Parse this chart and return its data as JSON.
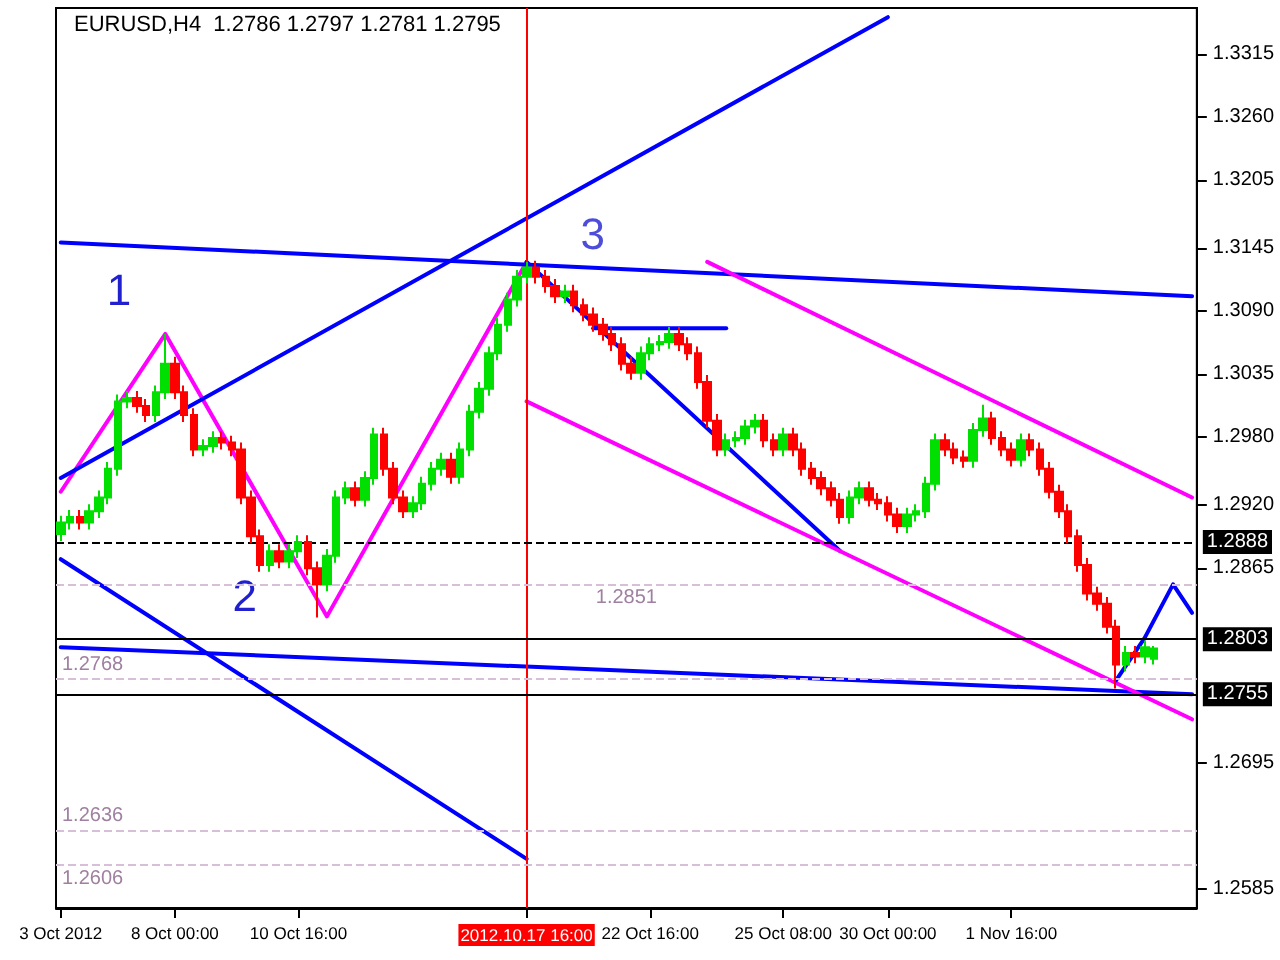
{
  "chart_data": {
    "type": "candlestick",
    "title": "EURUSD,H4  1.2786 1.2797 1.2781 1.2795",
    "categories": [
      "3 Oct 2012",
      null,
      null,
      null,
      null,
      null,
      null,
      null,
      null,
      null,
      null,
      null,
      "8 Oct 00:00",
      null,
      null,
      null,
      null,
      null,
      null,
      null,
      null,
      null,
      null,
      null,
      null,
      "10 Oct 16:00",
      null,
      null,
      null,
      null,
      null,
      null,
      null,
      null,
      null,
      null,
      null,
      null,
      null,
      null,
      null,
      null,
      null,
      null,
      null,
      null,
      null,
      null,
      null,
      "2012.10.17 16:00",
      null,
      null,
      null,
      null,
      null,
      null,
      null,
      null,
      null,
      null,
      null,
      null,
      "22 Oct 16:00",
      null,
      null,
      null,
      null,
      null,
      null,
      null,
      null,
      null,
      null,
      null,
      null,
      null,
      "25 Oct 08:00",
      null,
      null,
      null,
      null,
      null,
      null,
      null,
      null,
      null,
      null,
      "30 Oct 00:00",
      null,
      null,
      null,
      null,
      null,
      null,
      null,
      null,
      null,
      null,
      null,
      null,
      "1 Nov 16:00",
      null,
      null,
      null,
      null,
      null,
      null,
      null,
      null,
      null,
      null,
      null,
      null,
      null,
      null,
      null,
      null,
      null,
      null,
      null
    ],
    "colors": [
      "#00e000",
      "#00e000",
      "#ff0000",
      "#00e000",
      "#00e000",
      "#00e000",
      "#00e000",
      "#00e000",
      "#ff0000",
      "#ff0000",
      "#00e000",
      "#00e000",
      "#ff0000",
      "#ff0000",
      "#ff0000",
      "#00e000",
      "#00e000",
      "#ff0000",
      "#ff0000",
      "#ff0000",
      "#ff0000",
      "#ff0000",
      "#00e000",
      "#ff0000",
      "#00e000",
      "#00e000",
      "#ff0000",
      "#ff0000",
      "#00e000",
      "#00e000",
      "#00e000",
      "#ff0000",
      "#00e000",
      "#00e000",
      "#ff0000",
      "#ff0000",
      "#ff0000",
      "#00e000",
      "#00e000",
      "#00e000",
      "#00e000",
      "#ff0000",
      "#00e000",
      "#00e000",
      "#00e000",
      "#00e000",
      "#00e000",
      "#00e000",
      "#00e000",
      "#00e000",
      "#ff0000",
      "#ff0000",
      "#ff0000",
      "#00e000",
      "#ff0000",
      "#ff0000",
      "#ff0000",
      "#ff0000",
      "#ff0000",
      "#ff0000",
      "#ff0000",
      "#00e000",
      "#00e000",
      "#00e000",
      "#00e000",
      "#ff0000",
      "#ff0000",
      "#ff0000",
      "#ff0000",
      "#ff0000",
      "#00e000",
      "#00e000",
      "#00e000",
      "#00e000",
      "#ff0000",
      "#ff0000",
      "#00e000",
      "#ff0000",
      "#ff0000",
      "#ff0000",
      "#ff0000",
      "#ff0000",
      "#ff0000",
      "#00e000",
      "#00e000",
      "#ff0000",
      "#ff0000",
      "#ff0000",
      "#ff0000",
      "#00e000",
      "#00e000",
      "#00e000",
      "#00e000",
      "#ff0000",
      "#ff0000",
      "#ff0000",
      "#00e000",
      "#00e000",
      "#ff0000",
      "#ff0000",
      "#ff0000",
      "#00e000",
      "#ff0000",
      "#ff0000",
      "#ff0000",
      "#ff0000",
      "#ff0000",
      "#ff0000",
      "#ff0000",
      "#ff0000",
      "#ff0000",
      "#ff0000",
      "#00e000",
      "#ff0000",
      "#00e000",
      "#00e000",
      null,
      null,
      null,
      null
    ],
    "ohlc": [
      [
        1.2895,
        1.2911,
        1.2889,
        1.2905
      ],
      [
        1.2905,
        1.2916,
        1.2899,
        1.291
      ],
      [
        1.291,
        1.2916,
        1.2899,
        1.2905
      ],
      [
        1.2905,
        1.2921,
        1.2899,
        1.2915
      ],
      [
        1.2915,
        1.2933,
        1.2909,
        1.2927
      ],
      [
        1.2927,
        1.2958,
        1.2921,
        1.2952
      ],
      [
        1.2952,
        1.3017,
        1.2946,
        1.3011
      ],
      [
        1.3011,
        1.302,
        1.3005,
        1.3014
      ],
      [
        1.3014,
        1.302,
        1.3001,
        1.3007
      ],
      [
        1.3007,
        1.3013,
        1.2993,
        1.2999
      ],
      [
        1.2999,
        1.3025,
        1.2993,
        1.3019
      ],
      [
        1.3019,
        1.307,
        1.3013,
        1.3044
      ],
      [
        1.3044,
        1.305,
        1.3013,
        1.3019
      ],
      [
        1.3019,
        1.3025,
        1.2993,
        1.2999
      ],
      [
        1.2999,
        1.3005,
        1.2963,
        1.2969
      ],
      [
        1.2969,
        1.2978,
        1.2963,
        1.2972
      ],
      [
        1.2972,
        1.2985,
        1.2966,
        1.2979
      ],
      [
        1.2979,
        1.2985,
        1.2969,
        1.2975
      ],
      [
        1.2975,
        1.2981,
        1.2963,
        1.2969
      ],
      [
        1.2969,
        1.2975,
        1.2921,
        1.2927
      ],
      [
        1.2927,
        1.2933,
        1.2887,
        1.2893
      ],
      [
        1.2893,
        1.2899,
        1.2862,
        1.2868
      ],
      [
        1.2868,
        1.2886,
        1.2862,
        1.288
      ],
      [
        1.288,
        1.2886,
        1.2865,
        1.2871
      ],
      [
        1.2871,
        1.2886,
        1.2865,
        1.288
      ],
      [
        1.288,
        1.2894,
        1.2874,
        1.2888
      ],
      [
        1.2888,
        1.2894,
        1.2859,
        1.2865
      ],
      [
        1.2865,
        1.2871,
        1.2822,
        1.2851
      ],
      [
        1.2851,
        1.2882,
        1.2845,
        1.2876
      ],
      [
        1.2876,
        1.2933,
        1.287,
        1.2927
      ],
      [
        1.2927,
        1.2941,
        1.2921,
        1.2935
      ],
      [
        1.2935,
        1.2941,
        1.2919,
        1.2925
      ],
      [
        1.2925,
        1.295,
        1.2919,
        1.2944
      ],
      [
        1.2944,
        1.2988,
        1.2938,
        1.2982
      ],
      [
        1.2982,
        1.2988,
        1.2946,
        1.2952
      ],
      [
        1.2952,
        1.2958,
        1.2921,
        1.2927
      ],
      [
        1.2927,
        1.2933,
        1.2909,
        1.2915
      ],
      [
        1.2915,
        1.2928,
        1.2909,
        1.2922
      ],
      [
        1.2922,
        1.2945,
        1.2916,
        1.2939
      ],
      [
        1.2939,
        1.2958,
        1.2933,
        1.2952
      ],
      [
        1.2952,
        1.2966,
        1.2946,
        1.296
      ],
      [
        1.296,
        1.2966,
        1.2939,
        1.2945
      ],
      [
        1.2945,
        1.2975,
        1.2939,
        1.2969
      ],
      [
        1.2969,
        1.3008,
        1.2963,
        1.3002
      ],
      [
        1.3002,
        1.3028,
        1.2996,
        1.3022
      ],
      [
        1.3022,
        1.3059,
        1.3016,
        1.3053
      ],
      [
        1.3053,
        1.3084,
        1.3047,
        1.3078
      ],
      [
        1.3078,
        1.3106,
        1.3072,
        1.31
      ],
      [
        1.31,
        1.3126,
        1.3094,
        1.312
      ],
      [
        1.312,
        1.3133,
        1.3114,
        1.3128
      ],
      [
        1.3128,
        1.3134,
        1.3114,
        1.312
      ],
      [
        1.312,
        1.3126,
        1.3106,
        1.3112
      ],
      [
        1.3112,
        1.3118,
        1.3097,
        1.3103
      ],
      [
        1.3103,
        1.3113,
        1.3097,
        1.3107
      ],
      [
        1.3107,
        1.3113,
        1.3089,
        1.3095
      ],
      [
        1.3095,
        1.3101,
        1.3081,
        1.3087
      ],
      [
        1.3087,
        1.3093,
        1.3072,
        1.3078
      ],
      [
        1.3078,
        1.3084,
        1.3064,
        1.307
      ],
      [
        1.307,
        1.3076,
        1.3055,
        1.3061
      ],
      [
        1.3061,
        1.3067,
        1.3038,
        1.3044
      ],
      [
        1.3044,
        1.305,
        1.303,
        1.3036
      ],
      [
        1.3036,
        1.3059,
        1.303,
        1.3053
      ],
      [
        1.3053,
        1.3067,
        1.3047,
        1.3061
      ],
      [
        1.3061,
        1.3069,
        1.3055,
        1.3063
      ],
      [
        1.3063,
        1.3076,
        1.3057,
        1.307
      ],
      [
        1.307,
        1.3076,
        1.3055,
        1.3061
      ],
      [
        1.3061,
        1.3067,
        1.3047,
        1.3053
      ],
      [
        1.3053,
        1.3059,
        1.3022,
        1.3028
      ],
      [
        1.3028,
        1.3034,
        1.2988,
        1.2994
      ],
      [
        1.2994,
        1.3,
        1.2963,
        1.2969
      ],
      [
        1.2969,
        1.2983,
        1.2963,
        1.2977
      ],
      [
        1.2977,
        1.2985,
        1.2971,
        1.2979
      ],
      [
        1.2979,
        1.2995,
        1.2973,
        1.2989
      ],
      [
        1.2989,
        1.3,
        1.2983,
        1.2994
      ],
      [
        1.2994,
        1.3,
        1.2971,
        1.2977
      ],
      [
        1.2977,
        1.2983,
        1.2963,
        1.2969
      ],
      [
        1.2969,
        1.2988,
        1.2963,
        1.2982
      ],
      [
        1.2982,
        1.2988,
        1.2963,
        1.2969
      ],
      [
        1.2969,
        1.2975,
        1.2946,
        1.2952
      ],
      [
        1.2952,
        1.2958,
        1.2938,
        1.2944
      ],
      [
        1.2944,
        1.295,
        1.2929,
        1.2935
      ],
      [
        1.2935,
        1.2941,
        1.2919,
        1.2925
      ],
      [
        1.2925,
        1.2931,
        1.2904,
        1.291
      ],
      [
        1.291,
        1.2933,
        1.2904,
        1.2927
      ],
      [
        1.2927,
        1.2941,
        1.2921,
        1.2935
      ],
      [
        1.2935,
        1.2941,
        1.2919,
        1.2925
      ],
      [
        1.2925,
        1.2931,
        1.2916,
        1.2922
      ],
      [
        1.2922,
        1.2928,
        1.2906,
        1.2912
      ],
      [
        1.2912,
        1.2918,
        1.2896,
        1.2902
      ],
      [
        1.2902,
        1.2918,
        1.2896,
        1.2912
      ],
      [
        1.2912,
        1.2921,
        1.2906,
        1.2915
      ],
      [
        1.2915,
        1.2945,
        1.2909,
        1.2939
      ],
      [
        1.2939,
        1.2983,
        1.2933,
        1.2977
      ],
      [
        1.2977,
        1.2983,
        1.2963,
        1.2969
      ],
      [
        1.2969,
        1.2975,
        1.2956,
        1.2962
      ],
      [
        1.2962,
        1.2968,
        1.2953,
        1.2959
      ],
      [
        1.2959,
        1.2992,
        1.2953,
        1.2986
      ],
      [
        1.2986,
        1.3008,
        1.298,
        1.2996
      ],
      [
        1.2996,
        1.3002,
        1.2973,
        1.2979
      ],
      [
        1.2979,
        1.2985,
        1.2963,
        1.2969
      ],
      [
        1.2969,
        1.2975,
        1.2954,
        1.296
      ],
      [
        1.296,
        1.2983,
        1.2954,
        1.2977
      ],
      [
        1.2977,
        1.2983,
        1.2963,
        1.2969
      ],
      [
        1.2969,
        1.2975,
        1.2946,
        1.2952
      ],
      [
        1.2952,
        1.2958,
        1.2926,
        1.2932
      ],
      [
        1.2932,
        1.2938,
        1.2909,
        1.2915
      ],
      [
        1.2915,
        1.2921,
        1.2887,
        1.2893
      ],
      [
        1.2893,
        1.2899,
        1.2862,
        1.2868
      ],
      [
        1.2868,
        1.2874,
        1.2837,
        1.2843
      ],
      [
        1.2843,
        1.2849,
        1.2828,
        1.2834
      ],
      [
        1.2834,
        1.284,
        1.2808,
        1.2814
      ],
      [
        1.2814,
        1.282,
        1.276,
        1.2781
      ],
      [
        1.2781,
        1.2797,
        1.2775,
        1.2791
      ],
      [
        1.2791,
        1.2797,
        1.2782,
        1.2788
      ],
      [
        1.2788,
        1.2802,
        1.2782,
        1.2796
      ],
      [
        1.2786,
        1.2797,
        1.2781,
        1.2795
      ],
      null,
      null,
      null,
      null
    ],
    "series": [
      {
        "type": "line",
        "color": "#ff00ff",
        "values": [
          1.2932,
          null,
          null,
          null,
          null,
          null,
          null,
          null,
          null,
          null,
          null,
          1.307,
          null,
          null,
          null,
          null,
          null,
          null,
          null,
          null,
          null,
          null,
          null,
          null,
          null,
          null,
          null,
          null,
          1.2823,
          null,
          null,
          null,
          null,
          null,
          null,
          null,
          null,
          null,
          null,
          null,
          null,
          null,
          null,
          null,
          null,
          null,
          null,
          null,
          null,
          1.3133,
          null,
          null,
          null,
          null,
          null,
          null,
          null,
          null,
          null,
          null,
          null,
          null,
          null,
          null,
          null,
          null,
          null,
          null,
          null,
          null,
          null,
          null,
          null,
          null,
          null,
          null,
          null,
          null,
          null,
          null,
          null,
          null,
          null,
          null,
          null,
          null,
          null,
          null,
          null,
          null,
          null,
          null,
          null,
          null,
          null,
          null,
          null,
          null,
          null,
          null,
          null,
          null,
          null,
          null,
          null,
          null,
          null,
          null,
          null,
          null,
          null,
          null,
          null,
          null,
          null,
          null,
          null,
          null,
          null,
          null
        ]
      },
      {
        "type": "line",
        "color": "#0000ff",
        "values": [
          1.2944,
          null,
          null,
          null,
          null,
          null,
          null,
          null,
          null,
          null,
          null,
          null,
          null,
          null,
          null,
          null,
          null,
          null,
          null,
          null,
          null,
          null,
          null,
          null,
          null,
          null,
          null,
          null,
          null,
          null,
          null,
          null,
          null,
          null,
          null,
          null,
          null,
          null,
          null,
          null,
          null,
          null,
          null,
          null,
          null,
          null,
          null,
          null,
          null,
          null,
          null,
          null,
          null,
          null,
          null,
          null,
          null,
          null,
          null,
          null,
          null,
          null,
          null,
          null,
          null,
          null,
          null,
          null,
          null,
          null,
          null,
          null,
          null,
          null,
          null,
          null,
          null,
          null,
          null,
          null,
          null,
          null,
          null,
          null,
          null,
          null,
          null,
          1.3347,
          null,
          null,
          null,
          null,
          null,
          null,
          null,
          null,
          null,
          null,
          null,
          null,
          null,
          null,
          null,
          null,
          null,
          null,
          null,
          null,
          null,
          null,
          null,
          null,
          null,
          null,
          null,
          null,
          null,
          null,
          null,
          null
        ]
      },
      {
        "type": "line",
        "color": "#0000ff",
        "values": [
          1.315,
          null,
          null,
          null,
          null,
          null,
          null,
          null,
          null,
          null,
          null,
          null,
          null,
          null,
          null,
          null,
          null,
          null,
          null,
          null,
          null,
          null,
          null,
          null,
          null,
          null,
          null,
          null,
          null,
          null,
          null,
          null,
          null,
          null,
          null,
          null,
          null,
          null,
          null,
          null,
          null,
          null,
          null,
          null,
          null,
          null,
          null,
          null,
          null,
          null,
          null,
          null,
          null,
          null,
          null,
          null,
          null,
          null,
          null,
          null,
          null,
          null,
          null,
          null,
          null,
          null,
          null,
          null,
          null,
          null,
          null,
          null,
          null,
          null,
          null,
          null,
          null,
          null,
          null,
          null,
          null,
          null,
          null,
          null,
          null,
          null,
          null,
          null,
          null,
          null,
          null,
          null,
          null,
          null,
          null,
          null,
          null,
          null,
          null,
          null,
          null,
          null,
          null,
          null,
          null,
          null,
          null,
          null,
          null,
          null,
          null,
          null,
          null,
          null,
          null,
          null,
          null,
          null,
          null,
          1.3103
        ]
      },
      {
        "type": "line",
        "color": "#0000ff",
        "values": [
          1.2796,
          null,
          null,
          null,
          null,
          null,
          null,
          null,
          null,
          null,
          null,
          null,
          null,
          null,
          null,
          null,
          null,
          null,
          null,
          null,
          null,
          null,
          null,
          null,
          null,
          null,
          null,
          null,
          null,
          null,
          null,
          null,
          null,
          null,
          null,
          null,
          null,
          null,
          null,
          null,
          null,
          null,
          null,
          null,
          null,
          null,
          null,
          null,
          null,
          null,
          null,
          null,
          null,
          null,
          null,
          null,
          null,
          null,
          null,
          null,
          null,
          null,
          null,
          null,
          null,
          null,
          null,
          null,
          null,
          null,
          null,
          null,
          null,
          null,
          null,
          null,
          null,
          null,
          null,
          null,
          null,
          null,
          null,
          null,
          null,
          null,
          null,
          null,
          null,
          null,
          null,
          null,
          null,
          null,
          null,
          null,
          null,
          null,
          null,
          null,
          null,
          null,
          null,
          null,
          null,
          null,
          null,
          null,
          null,
          null,
          null,
          null,
          null,
          null,
          null,
          null,
          null,
          null,
          null,
          1.2755
        ]
      },
      {
        "type": "line",
        "color": "#0000ff",
        "values": [
          1.2873,
          null,
          null,
          null,
          null,
          null,
          null,
          null,
          null,
          null,
          null,
          null,
          null,
          null,
          null,
          null,
          null,
          null,
          null,
          null,
          null,
          null,
          null,
          null,
          null,
          null,
          null,
          null,
          null,
          null,
          null,
          null,
          null,
          null,
          null,
          null,
          null,
          null,
          null,
          null,
          null,
          null,
          null,
          null,
          null,
          null,
          null,
          null,
          null,
          1.2611,
          null,
          null,
          null,
          null,
          null,
          null,
          null,
          null,
          null,
          null,
          null,
          null,
          null,
          null,
          null,
          null,
          null,
          null,
          null,
          null,
          null,
          null,
          null,
          null,
          null,
          null,
          null,
          null,
          null,
          null,
          null,
          null,
          null,
          null,
          null,
          null,
          null,
          null,
          null,
          null,
          null,
          null,
          null,
          null,
          null,
          null,
          null,
          null,
          null,
          null,
          null,
          null,
          null,
          null,
          null,
          null,
          null,
          null,
          null,
          null,
          null,
          null,
          null,
          null,
          null,
          null,
          null,
          null,
          null,
          null
        ]
      },
      {
        "type": "line",
        "color": "#0000ff",
        "values": [
          null,
          null,
          null,
          null,
          null,
          null,
          null,
          null,
          null,
          null,
          null,
          null,
          null,
          null,
          null,
          null,
          null,
          null,
          null,
          null,
          null,
          null,
          null,
          null,
          null,
          null,
          null,
          null,
          null,
          null,
          null,
          null,
          null,
          null,
          null,
          null,
          null,
          null,
          null,
          null,
          null,
          null,
          null,
          null,
          null,
          null,
          null,
          null,
          null,
          1.3133,
          null,
          null,
          null,
          null,
          null,
          null,
          null,
          null,
          null,
          null,
          null,
          null,
          null,
          null,
          null,
          null,
          null,
          null,
          null,
          null,
          null,
          null,
          null,
          null,
          null,
          null,
          null,
          null,
          null,
          null,
          null,
          null,
          1.288,
          null,
          null,
          null,
          null,
          null,
          null,
          null,
          null,
          null,
          null,
          null,
          null,
          null,
          null,
          null,
          null,
          null,
          null,
          null,
          null,
          null,
          null,
          null,
          null,
          null,
          null,
          null,
          null,
          null,
          null,
          null,
          null,
          null,
          null,
          null,
          null,
          null
        ]
      },
      {
        "type": "line",
        "color": "#ff00ff",
        "values": [
          null,
          null,
          null,
          null,
          null,
          null,
          null,
          null,
          null,
          null,
          null,
          null,
          null,
          null,
          null,
          null,
          null,
          null,
          null,
          null,
          null,
          null,
          null,
          null,
          null,
          null,
          null,
          null,
          null,
          null,
          null,
          null,
          null,
          null,
          null,
          null,
          null,
          null,
          null,
          null,
          null,
          null,
          null,
          null,
          null,
          null,
          null,
          null,
          null,
          null,
          null,
          null,
          null,
          null,
          null,
          null,
          null,
          null,
          null,
          null,
          null,
          null,
          null,
          null,
          null,
          null,
          null,
          null,
          1.3133,
          null,
          null,
          null,
          null,
          null,
          null,
          null,
          null,
          null,
          null,
          null,
          null,
          null,
          null,
          null,
          null,
          null,
          null,
          null,
          null,
          null,
          null,
          null,
          null,
          null,
          null,
          null,
          null,
          null,
          null,
          null,
          null,
          null,
          null,
          null,
          null,
          null,
          null,
          null,
          null,
          null,
          null,
          null,
          null,
          null,
          null,
          null,
          null,
          null,
          null,
          1.2927
        ]
      },
      {
        "type": "line",
        "color": "#ff00ff",
        "values": [
          null,
          null,
          null,
          null,
          null,
          null,
          null,
          null,
          null,
          null,
          null,
          null,
          null,
          null,
          null,
          null,
          null,
          null,
          null,
          null,
          null,
          null,
          null,
          null,
          null,
          null,
          null,
          null,
          null,
          null,
          null,
          null,
          null,
          null,
          null,
          null,
          null,
          null,
          null,
          null,
          null,
          null,
          null,
          null,
          null,
          null,
          null,
          null,
          null,
          1.3011,
          null,
          null,
          null,
          null,
          null,
          null,
          null,
          null,
          null,
          null,
          null,
          null,
          null,
          null,
          null,
          null,
          null,
          null,
          null,
          null,
          null,
          null,
          null,
          null,
          null,
          null,
          null,
          null,
          null,
          null,
          null,
          null,
          null,
          null,
          null,
          null,
          null,
          null,
          null,
          null,
          null,
          null,
          null,
          null,
          null,
          null,
          null,
          null,
          null,
          null,
          null,
          null,
          null,
          null,
          null,
          null,
          null,
          null,
          null,
          null,
          null,
          null,
          null,
          null,
          null,
          null,
          null,
          null,
          null,
          1.2733
        ]
      },
      {
        "type": "line",
        "color": "#0000ff",
        "values": [
          null,
          null,
          null,
          null,
          null,
          null,
          null,
          null,
          null,
          null,
          null,
          null,
          null,
          null,
          null,
          null,
          null,
          null,
          null,
          null,
          null,
          null,
          null,
          null,
          null,
          null,
          null,
          null,
          null,
          null,
          null,
          null,
          null,
          null,
          null,
          null,
          null,
          null,
          null,
          null,
          null,
          null,
          null,
          null,
          null,
          null,
          null,
          null,
          null,
          null,
          null,
          null,
          null,
          null,
          null,
          null,
          null,
          null,
          null,
          null,
          null,
          null,
          null,
          null,
          null,
          null,
          null,
          null,
          null,
          null,
          null,
          null,
          null,
          null,
          null,
          null,
          null,
          null,
          null,
          null,
          null,
          null,
          null,
          null,
          null,
          null,
          null,
          null,
          null,
          null,
          null,
          null,
          null,
          null,
          null,
          null,
          null,
          null,
          null,
          null,
          null,
          null,
          null,
          null,
          null,
          null,
          null,
          null,
          null,
          null,
          null,
          1.2767,
          null,
          null,
          1.2804,
          null,
          null,
          1.2851,
          null,
          1.2826
        ]
      },
      {
        "type": "line",
        "color": "#0000ff",
        "values": [
          null,
          null,
          null,
          null,
          null,
          null,
          null,
          null,
          null,
          null,
          null,
          null,
          null,
          null,
          null,
          null,
          null,
          null,
          null,
          null,
          null,
          null,
          null,
          null,
          null,
          null,
          null,
          null,
          null,
          null,
          null,
          null,
          null,
          null,
          null,
          null,
          null,
          null,
          null,
          null,
          null,
          null,
          null,
          null,
          null,
          null,
          null,
          null,
          null,
          null,
          null,
          null,
          null,
          null,
          null,
          null,
          1.3075,
          null,
          null,
          null,
          null,
          null,
          null,
          null,
          null,
          null,
          null,
          null,
          null,
          null,
          1.3075,
          null,
          null,
          null,
          null,
          null,
          null,
          null,
          null,
          null,
          null,
          null,
          null,
          null,
          null,
          null,
          null,
          null,
          null,
          null,
          null,
          null,
          null,
          null,
          null,
          null,
          null,
          null,
          null,
          null,
          null,
          null,
          null,
          null,
          null,
          null,
          null,
          null,
          null,
          null,
          null,
          null,
          null,
          null,
          null,
          null,
          null,
          null,
          null,
          null
        ]
      }
    ],
    "annotations": [
      "1",
      "2",
      {
        "text": "3",
        "x": "2012.10.17 16:00",
        "y": 1.3133
      }
    ],
    "ylim": [
      1.2568,
      1.3355
    ],
    "yticks": [
      1.3315,
      {
        "value": 1.326,
        "label": "1.3260"
      },
      1.3205,
      1.3145,
      {
        "value": 1.309,
        "label": "1.3090"
      },
      1.3035,
      {
        "value": 1.298,
        "label": "1.2980"
      },
      {
        "value": 1.292,
        "label": "1.2920"
      },
      1.2865,
      1.2695,
      1.2585
    ],
    "ref_lines": [
      {
        "axis": "x",
        "value": "2012.10.17 16:00",
        "color": "#ff0000"
      },
      {
        "axis": "y",
        "value": 1.2888,
        "label": "1.2888",
        "color": "#000000",
        "line_style": "dashed"
      },
      {
        "axis": "y",
        "value": 1.2803,
        "label": "1.2803",
        "color": "#000000",
        "line_style": "solid"
      },
      {
        "axis": "y",
        "value": 1.2755,
        "label": "1.2755",
        "color": "#000000",
        "line_style": "solid"
      },
      {
        "axis": "y",
        "value": 1.2851,
        "label": "1.2851",
        "color": "#d8bfd8",
        "line_style": "dashed"
      },
      {
        "axis": "y",
        "value": 1.2768,
        "label": "1.2768",
        "color": "#d8bfd8",
        "line_style": "dashed"
      },
      {
        "axis": "y",
        "value": 1.2636,
        "label": "1.2636",
        "color": "#d8bfd8",
        "line_style": "dashed"
      },
      {
        "axis": "y",
        "value": 1.2606,
        "label": "1.2606",
        "color": "#d8bfd8",
        "line_style": "dashed"
      }
    ],
    "grid": false
  }
}
